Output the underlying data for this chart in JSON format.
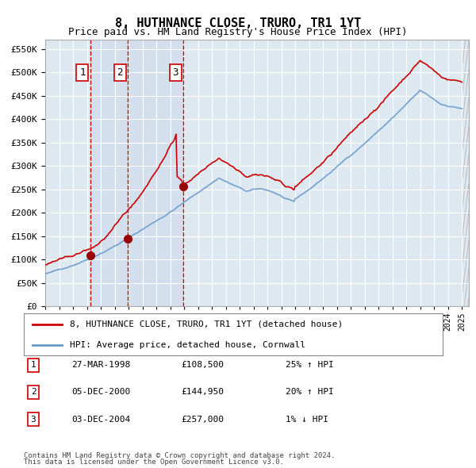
{
  "title": "8, HUTHNANCE CLOSE, TRURO, TR1 1YT",
  "subtitle": "Price paid vs. HM Land Registry's House Price Index (HPI)",
  "legend_line1": "8, HUTHNANCE CLOSE, TRURO, TR1 1YT (detached house)",
  "legend_line2": "HPI: Average price, detached house, Cornwall",
  "footer_line1": "Contains HM Land Registry data © Crown copyright and database right 2024.",
  "footer_line2": "This data is licensed under the Open Government Licence v3.0.",
  "transactions": [
    {
      "num": 1,
      "date": "27-MAR-1998",
      "price": 108500,
      "pct": "25%",
      "dir": "↑",
      "year_x": 1998.23
    },
    {
      "num": 2,
      "date": "05-DEC-2000",
      "price": 144950,
      "pct": "20%",
      "dir": "↑",
      "year_x": 2000.92
    },
    {
      "num": 3,
      "date": "03-DEC-2004",
      "price": 257000,
      "pct": "1%",
      "dir": "↓",
      "year_x": 2004.92
    }
  ],
  "hpi_color": "#6699cc",
  "price_color": "#cc0000",
  "bg_color": "#dde8f0",
  "plot_bg_color": "#dde8f0",
  "grid_color": "#ffffff",
  "transaction_vline_color": "#cc0000",
  "ylim": [
    0,
    570000
  ],
  "xlim_start": 1995.0,
  "xlim_end": 2025.5
}
